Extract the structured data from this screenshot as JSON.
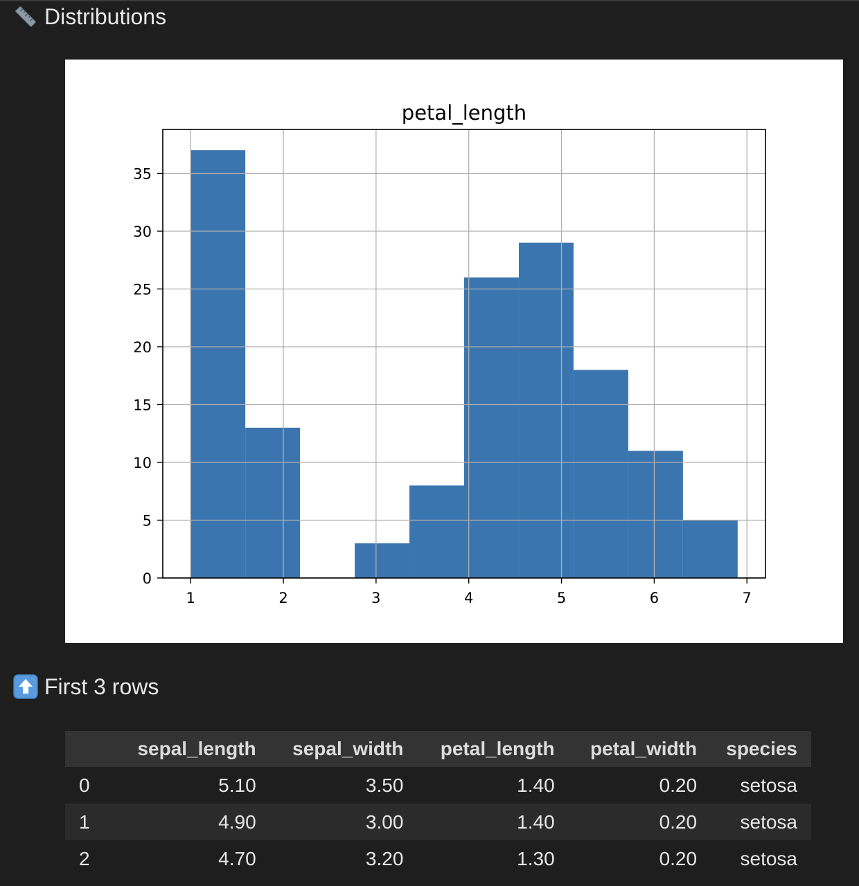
{
  "sections": {
    "distributions": {
      "title": "Distributions",
      "icon": "ruler-icon"
    },
    "first_rows": {
      "title": "First 3 rows",
      "icon": "up-arrow-icon"
    }
  },
  "chart_data": {
    "type": "bar",
    "title": "petal_length",
    "xlabel": "",
    "ylabel": "",
    "xlim": [
      0.7,
      7.2
    ],
    "ylim": [
      0,
      38.8
    ],
    "x_ticks": [
      "1",
      "2",
      "3",
      "4",
      "5",
      "6",
      "7"
    ],
    "y_ticks": [
      "0",
      "5",
      "10",
      "15",
      "20",
      "25",
      "30",
      "35"
    ],
    "grid": true,
    "bar_color": "#3b75af",
    "bins": [
      {
        "start": 1.0,
        "end": 1.59,
        "count": 37
      },
      {
        "start": 1.59,
        "end": 2.18,
        "count": 13
      },
      {
        "start": 2.18,
        "end": 2.77,
        "count": 0
      },
      {
        "start": 2.77,
        "end": 3.36,
        "count": 3
      },
      {
        "start": 3.36,
        "end": 3.95,
        "count": 8
      },
      {
        "start": 3.95,
        "end": 4.54,
        "count": 26
      },
      {
        "start": 4.54,
        "end": 5.13,
        "count": 29
      },
      {
        "start": 5.13,
        "end": 5.72,
        "count": 18
      },
      {
        "start": 5.72,
        "end": 6.31,
        "count": 11
      },
      {
        "start": 6.31,
        "end": 6.9,
        "count": 5
      }
    ]
  },
  "table": {
    "columns": [
      "",
      "sepal_length",
      "sepal_width",
      "petal_length",
      "petal_width",
      "species"
    ],
    "rows": [
      [
        "0",
        "5.10",
        "3.50",
        "1.40",
        "0.20",
        "setosa"
      ],
      [
        "1",
        "4.90",
        "3.00",
        "1.40",
        "0.20",
        "setosa"
      ],
      [
        "2",
        "4.70",
        "3.20",
        "1.30",
        "0.20",
        "setosa"
      ]
    ]
  }
}
